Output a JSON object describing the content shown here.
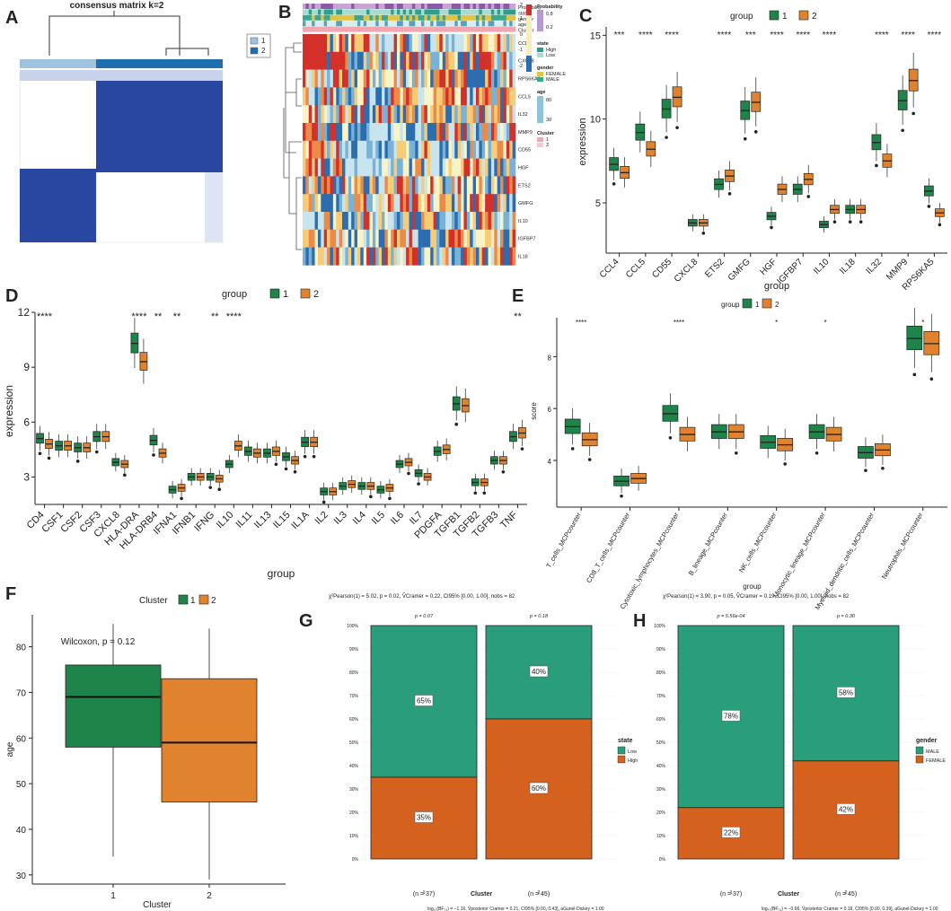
{
  "colors": {
    "g1": "#1e8449",
    "g2": "#e0822e",
    "low": "#2a9d7a",
    "high": "#d4621e",
    "male": "#2a9d7a",
    "female": "#d4621e",
    "consensus_dark": "#2747a0",
    "consensus_light": "#9fc3de"
  },
  "panel_labels": [
    "A",
    "B",
    "C",
    "D",
    "E",
    "F",
    "G",
    "H"
  ],
  "panelA": {
    "title": "consensus matrix k=2",
    "legend": [
      "1",
      "2"
    ]
  },
  "panelB": {
    "genes": [
      "CCL4",
      "CXCL8",
      "RPS6KA5",
      "CCL5",
      "IL32",
      "MMP9",
      "CD55",
      "HGF",
      "ETS2",
      "GMFG",
      "IL10",
      "IGFBP7",
      "IL18"
    ],
    "annotation_rows": [
      "Probability",
      "state",
      "gender",
      "age",
      "Cluster"
    ],
    "legend": {
      "probability_title": "Probability",
      "probability_ticks": [
        "0.8",
        "0.2"
      ],
      "heat_ticks": [
        "2",
        "1",
        "0",
        "-1",
        "-2"
      ],
      "state_title": "state",
      "state_items": [
        "High",
        "Low"
      ],
      "gender_title": "gender",
      "gender_items": [
        "FEMALE",
        "MALE"
      ],
      "age_title": "age",
      "age_ticks": [
        "80",
        "30"
      ],
      "cluster_title": "Cluster",
      "cluster_items": [
        "1",
        "2"
      ]
    }
  },
  "chart_data": [
    {
      "panel": "C",
      "type": "boxplot",
      "legend_title": "group",
      "legend_items": [
        "1",
        "2"
      ],
      "xlabel": "group",
      "ylabel": "expression",
      "ylim": [
        2,
        15.5
      ],
      "yticks": [
        5,
        10,
        15
      ],
      "categories": [
        "CCL4",
        "CCL5",
        "CD55",
        "CXCL8",
        "ETS2",
        "GMFG",
        "HGF",
        "IGFBP7",
        "IL10",
        "IL18",
        "IL32",
        "MMP9",
        "RPS6KA5"
      ],
      "significance": [
        "***",
        "****",
        "****",
        "",
        "****",
        "***",
        "****",
        "****",
        "****",
        "",
        "****",
        "****",
        "****"
      ],
      "medians": {
        "g1": [
          7.3,
          9.2,
          10.6,
          3.8,
          6.1,
          10.5,
          4.2,
          5.8,
          3.7,
          4.6,
          8.6,
          11.1,
          5.7
        ],
        "g2": [
          6.8,
          8.2,
          11.3,
          3.8,
          6.6,
          11.0,
          5.8,
          6.4,
          4.6,
          4.6,
          7.5,
          12.3,
          4.4
        ]
      }
    },
    {
      "panel": "D",
      "type": "boxplot",
      "legend_title": "group",
      "legend_items": [
        "1",
        "2"
      ],
      "xlabel": "group",
      "ylabel": "expression",
      "ylim": [
        1.5,
        12
      ],
      "yticks": [
        3,
        6,
        9,
        12
      ],
      "categories": [
        "CD4",
        "CSF1",
        "CSF2",
        "CSF3",
        "CXCL8",
        "HLA-DRA",
        "HLA-DRB4",
        "IFNA1",
        "IFNB1",
        "IFNG",
        "IL10",
        "IL11",
        "IL13",
        "IL15",
        "IL1A",
        "IL2",
        "IL3",
        "IL4",
        "IL5",
        "IL6",
        "IL7",
        "PDGFA",
        "TGFB1",
        "TGFB2",
        "TGFB3",
        "TNF"
      ],
      "significance": [
        "****",
        "",
        "",
        "",
        "",
        "****",
        "**",
        "**",
        "",
        "**",
        "****",
        "",
        "",
        "",
        "",
        "",
        "",
        "",
        "",
        "",
        "",
        "",
        "",
        "",
        "",
        "**"
      ],
      "medians": {
        "g1": [
          5.1,
          4.7,
          4.6,
          5.2,
          3.8,
          10.3,
          5.0,
          2.3,
          3.0,
          3.0,
          3.7,
          4.4,
          4.3,
          4.1,
          4.9,
          2.2,
          2.5,
          2.5,
          2.3,
          3.7,
          3.2,
          4.4,
          7.0,
          2.7,
          3.9,
          5.2
        ],
        "g2": [
          4.8,
          4.7,
          4.6,
          5.2,
          3.7,
          9.3,
          4.3,
          2.4,
          3.0,
          2.9,
          4.7,
          4.3,
          4.4,
          3.9,
          4.9,
          2.2,
          2.6,
          2.5,
          2.4,
          3.8,
          3.0,
          4.5,
          6.9,
          2.7,
          3.9,
          5.4
        ]
      }
    },
    {
      "panel": "E",
      "type": "boxplot",
      "legend_title": "group",
      "legend_items": [
        "1",
        "2"
      ],
      "xlabel": "group",
      "ylabel": "score",
      "ylim": [
        2.2,
        9.5
      ],
      "yticks": [
        4,
        6,
        8
      ],
      "categories": [
        "T_cells_MCPcounter",
        "CD8_T_cells_MCPcounter",
        "Cytotoxic_lymphocytes_MCPcounter",
        "B_lineage_MCPcounter",
        "NK_cells_MCPcounter",
        "Monocytic_lineage_MCPcounter",
        "Myeloid_dendritic_cells_MCPcounter",
        "Neutrophils_MCPcounter"
      ],
      "significance": [
        "****",
        "",
        "****",
        "",
        "*",
        "*",
        "",
        "*"
      ],
      "medians": {
        "g1": [
          5.3,
          3.2,
          5.8,
          5.1,
          4.7,
          5.1,
          4.3,
          8.7
        ],
        "g2": [
          4.8,
          3.3,
          5.0,
          5.1,
          4.6,
          5.0,
          4.4,
          8.5
        ]
      }
    },
    {
      "panel": "F",
      "type": "boxplot",
      "legend_title": "Cluster",
      "legend_items": [
        "1",
        "2"
      ],
      "xlabel": "Cluster",
      "ylabel": "age",
      "categories": [
        "1",
        "2"
      ],
      "ylim": [
        28,
        87
      ],
      "yticks": [
        30,
        40,
        50,
        60,
        70,
        80
      ],
      "annotation": "Wilcoxon, p = 0.12",
      "boxes": [
        {
          "min": 34,
          "q1": 58,
          "median": 69,
          "q3": 76,
          "max": 85
        },
        {
          "min": 29,
          "q1": 46,
          "median": 59,
          "q3": 73,
          "max": 84
        }
      ]
    },
    {
      "panel": "G",
      "type": "stacked_bar",
      "xlabel": "Cluster",
      "ylabel": "",
      "yticks": [
        "0%",
        "10%",
        "20%",
        "30%",
        "40%",
        "50%",
        "60%",
        "70%",
        "80%",
        "90%",
        "100%"
      ],
      "subtitle": "χ²Pearson(1) = 5.02, p = 0.02, V̂Cramer = 0.22, CI95% [0.00, 1.00], nobs = 82",
      "caption": "log₁₀(BF₀₁) = −1.16, V̂posterior Cramer = 0.21, CI95% [0.00, 0.43], aGunel-Dickey = 1.00",
      "categories": [
        "1",
        "2"
      ],
      "pvalues": [
        "p = 0.07",
        "p = 0.18"
      ],
      "counts": [
        "(n = 37)",
        "(n = 45)"
      ],
      "legend_title": "state",
      "series": [
        {
          "name": "Low",
          "values": [
            65,
            40
          ],
          "labels": [
            "65%",
            "40%"
          ]
        },
        {
          "name": "High",
          "values": [
            35,
            60
          ],
          "labels": [
            "35%",
            "60%"
          ]
        }
      ]
    },
    {
      "panel": "H",
      "type": "stacked_bar",
      "xlabel": "Cluster",
      "ylabel": "",
      "yticks": [
        "0%",
        "10%",
        "20%",
        "30%",
        "40%",
        "50%",
        "60%",
        "70%",
        "80%",
        "90%",
        "100%"
      ],
      "subtitle": "χ²Pearson(1) = 3.90, p = 0.05, V̂Cramer = 0.19, CI95% [0.00, 1.00], nobs = 82",
      "caption": "log₁₀(BF₀₁) = −0.66, V̂posterior Cramer = 0.18, CI95% [0.00, 0.39], aGunel-Dickey = 1.00",
      "categories": [
        "1",
        "2"
      ],
      "pvalues": [
        "p = 5.56e-04",
        "p = 0.30"
      ],
      "counts": [
        "(n = 37)",
        "(n = 45)"
      ],
      "legend_title": "gender",
      "series": [
        {
          "name": "MALE",
          "values": [
            78,
            58
          ],
          "labels": [
            "78%",
            "58%"
          ]
        },
        {
          "name": "FEMALE",
          "values": [
            22,
            42
          ],
          "labels": [
            "22%",
            "42%"
          ]
        }
      ]
    }
  ]
}
